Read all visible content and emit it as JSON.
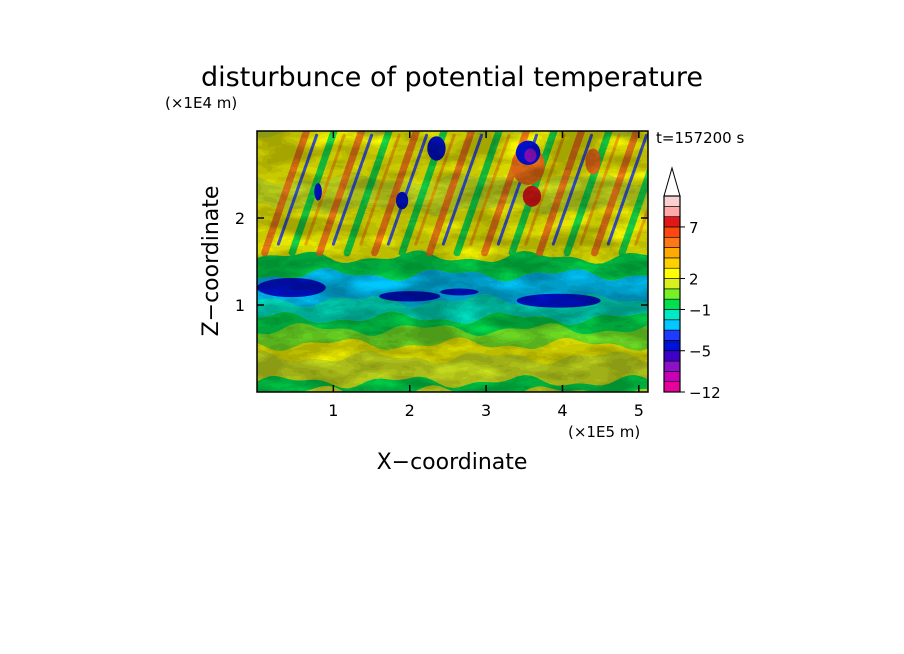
{
  "chart_data": {
    "type": "heatmap",
    "title": "disturbunce of potential temperature",
    "time_label": "t=157200 s",
    "xlabel": "X−coordinate",
    "ylabel": "Z−coordinate",
    "x_unit": "(×1E5 m)",
    "y_unit": "(×1E4 m)",
    "xlim": [
      0,
      5.12
    ],
    "ylim": [
      0,
      3.0
    ],
    "x_ticks": [
      1,
      2,
      3,
      4,
      5
    ],
    "y_ticks": [
      1,
      2
    ],
    "x_tick_labels": [
      "1",
      "2",
      "3",
      "4",
      "5"
    ],
    "y_tick_labels": [
      "1",
      "2"
    ],
    "colorbar": {
      "ticks": [
        -12,
        -5,
        -1,
        2,
        7
      ],
      "tick_labels": [
        "−12",
        "−5",
        "−1",
        "2",
        "7"
      ],
      "levels": [
        -12,
        -10,
        -8,
        -6,
        -5,
        -4,
        -3,
        -2,
        -1,
        0,
        1,
        2,
        3,
        4,
        5,
        6,
        7,
        8,
        10
      ],
      "colors": [
        "#e8009a",
        "#c800b8",
        "#8c10c8",
        "#3c00c8",
        "#0012d8",
        "#1e3cff",
        "#00c8ff",
        "#00e8c8",
        "#00e050",
        "#78f028",
        "#d8f020",
        "#ffff00",
        "#ffd000",
        "#ffaa00",
        "#ff7818",
        "#ff4810",
        "#e01818",
        "#ffa8a8",
        "#f8d0d0"
      ],
      "extend": "max"
    }
  }
}
